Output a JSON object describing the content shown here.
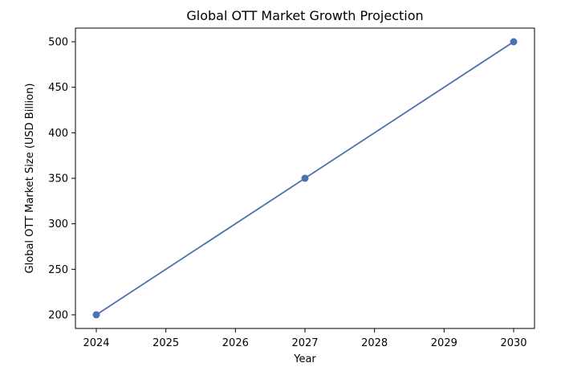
{
  "chart_data": {
    "type": "line",
    "title": "Global OTT Market Growth Projection",
    "xlabel": "Year",
    "ylabel": "Global OTT Market Size (USD Billion)",
    "x_ticks": [
      2024,
      2025,
      2026,
      2027,
      2028,
      2029,
      2030
    ],
    "y_ticks": [
      200,
      250,
      300,
      350,
      400,
      450,
      500
    ],
    "xlim": [
      2023.7,
      2030.3
    ],
    "ylim": [
      185,
      515
    ],
    "grid": false,
    "legend": "none",
    "series": [
      {
        "x": [
          2024,
          2027,
          2030
        ],
        "values": [
          200,
          350,
          500
        ],
        "color": "#4c72b0",
        "marker": "circle"
      }
    ]
  }
}
